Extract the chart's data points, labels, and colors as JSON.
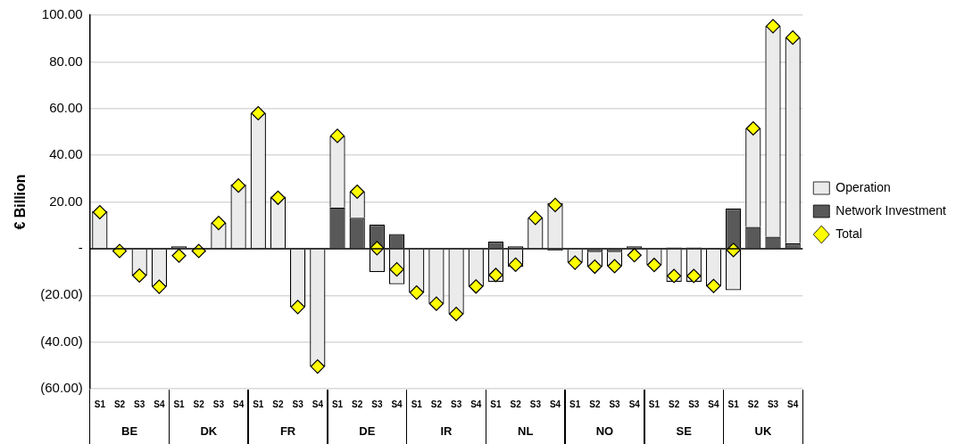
{
  "chart_data": {
    "type": "bar",
    "stacked": true,
    "ylabel": "€ Billion",
    "categories": [
      "S1",
      "S2",
      "S3",
      "S4",
      "S1",
      "S2",
      "S3",
      "S4",
      "S1",
      "S2",
      "S3",
      "S4",
      "S1",
      "S2",
      "S3",
      "S4",
      "S1",
      "S2",
      "S3",
      "S4",
      "S1",
      "S2",
      "S3",
      "S4",
      "S1",
      "S2",
      "S3",
      "S4",
      "S1",
      "S2",
      "S3",
      "S4",
      "S1",
      "S2",
      "S3",
      "S4"
    ],
    "annotations": [
      "BE",
      "DK",
      "FR",
      "DE",
      "IR",
      "NL",
      "NO",
      "SE",
      "UK"
    ],
    "series": [
      {
        "name": "Network Investment",
        "color": "#595959",
        "values": [
          -0.4,
          null,
          null,
          null,
          1.0,
          null,
          null,
          -0.5,
          null,
          -0.5,
          null,
          null,
          17.6,
          13.2,
          10.3,
          6.3,
          null,
          null,
          null,
          null,
          3.0,
          1.0,
          null,
          -0.8,
          null,
          -1.5,
          -1.5,
          1.0,
          null,
          0.5,
          0.5,
          0.3,
          17.2,
          9.3,
          5.1,
          2.3
        ]
      },
      {
        "name": "Operation",
        "color": "#ebebeb",
        "values": [
          16.0,
          null,
          -11.5,
          -16.3,
          null,
          null,
          11.0,
          27.5,
          58.0,
          22.3,
          -25.0,
          -50.5,
          30.7,
          11.2,
          -10.1,
          -15.2,
          -18.8,
          -23.6,
          -28.0,
          -16.2,
          -14.3,
          -7.9,
          13.2,
          19.5,
          -6.0,
          -6.2,
          -6.0,
          null,
          -7.0,
          -14.3,
          -14.3,
          -16.2,
          -17.8,
          42.2,
          90.2,
          88.1
        ]
      },
      {
        "name": "Total",
        "type": "scatter",
        "color": "#ffff00",
        "values": [
          15.6,
          -1.0,
          -11.5,
          -16.3,
          -3.0,
          -1.0,
          11.0,
          27.0,
          58.0,
          21.8,
          -25.0,
          -50.5,
          48.3,
          24.4,
          0.2,
          -8.9,
          -18.8,
          -23.6,
          -28.0,
          -16.2,
          -11.3,
          -6.9,
          13.2,
          18.7,
          -6.0,
          -7.7,
          -7.5,
          -2.8,
          -7.0,
          -11.7,
          -11.7,
          -16.0,
          -0.6,
          51.5,
          95.3,
          90.4
        ]
      }
    ],
    "marker": "diamond",
    "ylim": [
      -60,
      100
    ],
    "yticks": [
      {
        "value": -60,
        "label": "(60.00)"
      },
      {
        "value": -40,
        "label": "(40.00)"
      },
      {
        "value": -20,
        "label": "(20.00)"
      },
      {
        "value": 0,
        "label": "-"
      },
      {
        "value": 20,
        "label": "20.00"
      },
      {
        "value": 40,
        "label": "40.00"
      },
      {
        "value": 60,
        "label": "60.00"
      },
      {
        "value": 80,
        "label": "80.00"
      },
      {
        "value": 100,
        "label": "100.00"
      }
    ],
    "grid": "y",
    "legend": "right"
  }
}
